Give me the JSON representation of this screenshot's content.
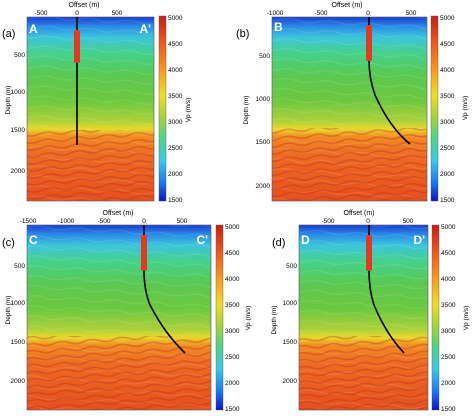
{
  "colors": {
    "vp_scale": [
      "#0a14c8",
      "#1e78f0",
      "#3cc8e6",
      "#50d28c",
      "#64c83c",
      "#a0d23c",
      "#f0dc28",
      "#f5a01e",
      "#eb5a1e",
      "#c81e14"
    ],
    "well_marker": "#e03a20",
    "well_path": "#000000"
  },
  "shared": {
    "offset_axis_label": "Offset (m)",
    "depth_axis_label": "Depth (m)",
    "vp_label": "Vp (m/s)",
    "depth_ticks": [
      "500",
      "1000",
      "1500",
      "2000"
    ],
    "colorbar_ticks": [
      "5000",
      "4500",
      "4000",
      "3500",
      "3000",
      "2500",
      "2000",
      "1500"
    ]
  },
  "panels": [
    {
      "id": "a",
      "label": "(a)",
      "section_start": "A",
      "section_end": "A'",
      "offset_ticks": [
        "-500",
        "0",
        "500"
      ],
      "well": "straight"
    },
    {
      "id": "b",
      "label": "(b)",
      "section_start": "B",
      "section_end": "B'",
      "offset_ticks": [
        "-1000",
        "-500",
        "0",
        "500"
      ],
      "well": "deviated"
    },
    {
      "id": "c",
      "label": "(c)",
      "section_start": "C",
      "section_end": "C'",
      "offset_ticks": [
        "-1500",
        "-1000",
        "-500",
        "0",
        "500"
      ],
      "well": "deviated"
    },
    {
      "id": "d",
      "label": "(d)",
      "section_start": "D",
      "section_end": "D'",
      "offset_ticks": [
        "-500",
        "0",
        "500"
      ],
      "well": "deviated"
    }
  ]
}
